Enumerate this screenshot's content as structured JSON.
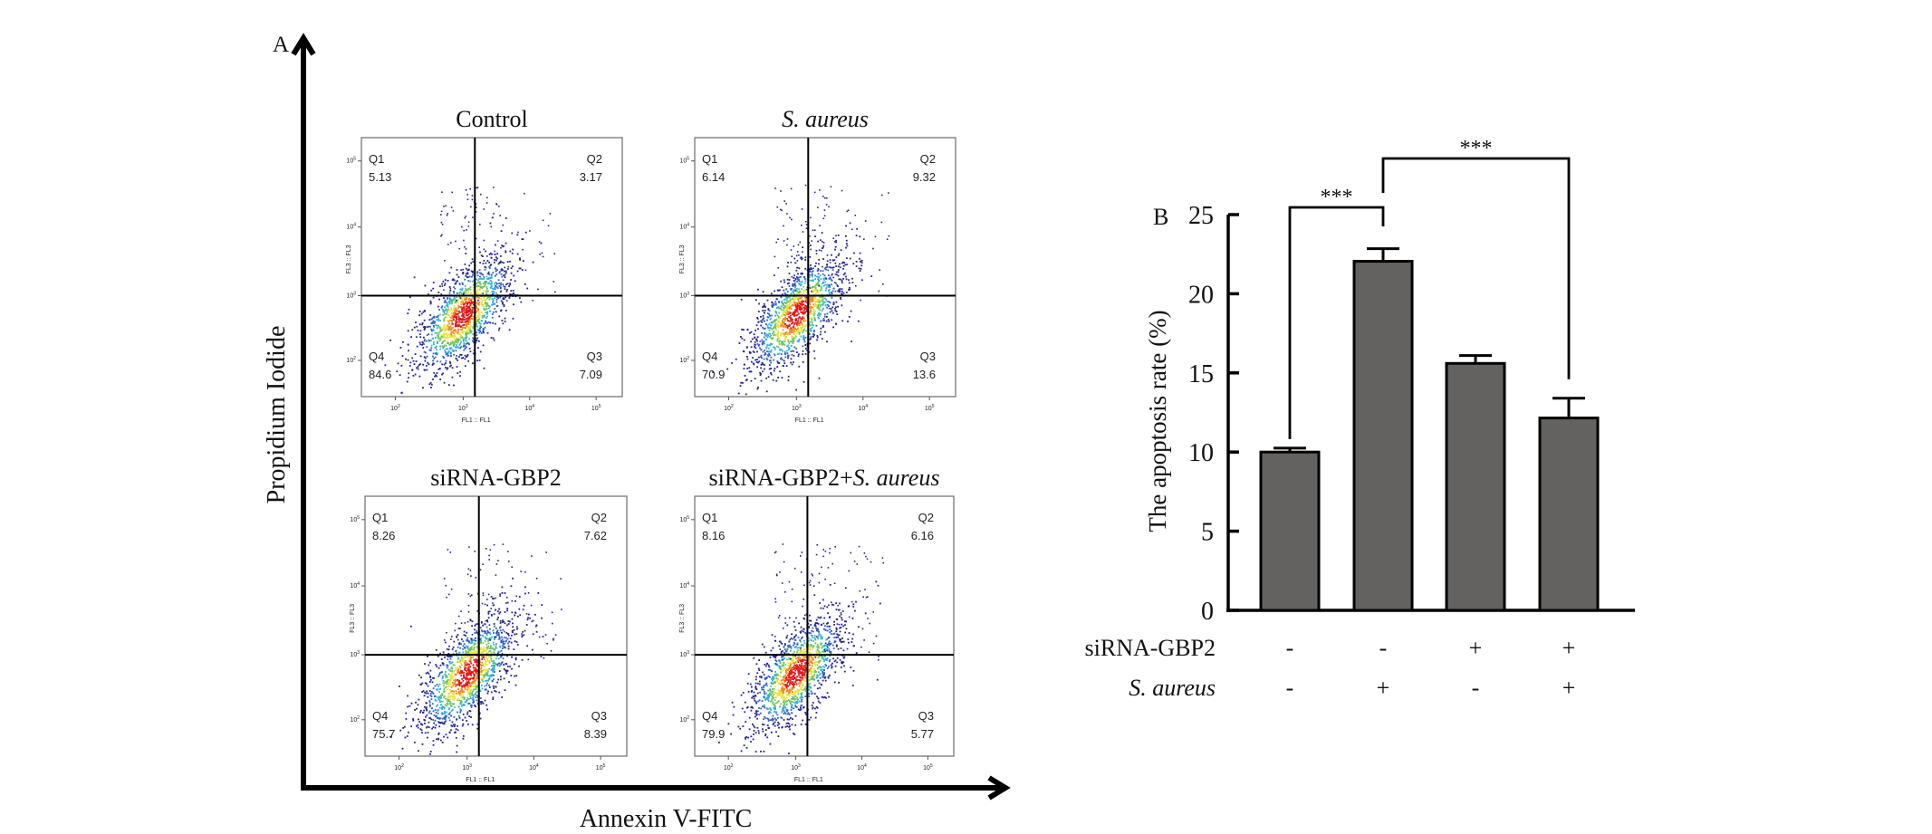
{
  "panel_a": {
    "label": "A",
    "y_axis_title": "Propidium Iodide",
    "x_axis_title": "Annexin V-FITC",
    "flow_x_label": "FL1 :: FL1",
    "flow_y_label": "FL3 :: FL3",
    "log_ticks": [
      "10",
      "10",
      "10",
      "10"
    ],
    "log_exponents": [
      "2",
      "3",
      "4",
      "5"
    ],
    "plots": [
      {
        "title": "Control",
        "title_italic": false,
        "title_prefix": "",
        "Q1": "5.13",
        "Q2": "3.17",
        "Q3": "7.09",
        "Q4": "84.6"
      },
      {
        "title": "S. aureus",
        "title_italic": true,
        "title_prefix": "",
        "Q1": "6.14",
        "Q2": "9.32",
        "Q3": "13.6",
        "Q4": "70.9"
      },
      {
        "title": "siRNA-GBP2",
        "title_italic": false,
        "title_prefix": "",
        "Q1": "8.26",
        "Q2": "7.62",
        "Q3": "8.39",
        "Q4": "75.7"
      },
      {
        "title": "S. aureus",
        "title_italic": true,
        "title_prefix": "siRNA-GBP2+",
        "Q1": "8.16",
        "Q2": "6.16",
        "Q3": "5.77",
        "Q4": "79.9"
      }
    ],
    "quadrant_names": [
      "Q1",
      "Q2",
      "Q3",
      "Q4"
    ],
    "density_colors": [
      "#23238f",
      "#2f5fc0",
      "#33b0d8",
      "#6cc45a",
      "#e8e23a",
      "#f08a20",
      "#e01818"
    ]
  },
  "chart_data": {
    "type": "bar",
    "panel_label": "B",
    "title": "",
    "xlabel": "",
    "ylabel": "The apoptosis rate (%)",
    "ylim": [
      0,
      25
    ],
    "yticks": [
      0,
      5,
      10,
      15,
      20,
      25
    ],
    "categories": [
      "Control",
      "S. aureus",
      "siRNA-GBP2",
      "siRNA-GBP2+S. aureus"
    ],
    "values": [
      10.0,
      22.05,
      15.6,
      12.15
    ],
    "error": [
      0.25,
      0.8,
      0.5,
      1.25
    ],
    "bar_color": "#636260",
    "grid": false,
    "conditions": [
      {
        "name": "siRNA-GBP2",
        "italic": false,
        "signs": [
          "-",
          "-",
          "+",
          "+"
        ]
      },
      {
        "name": "S. aureus",
        "italic": true,
        "signs": [
          "-",
          "+",
          "-",
          "+"
        ]
      }
    ],
    "significance": [
      {
        "from": 0,
        "to": 1,
        "label": "***"
      },
      {
        "from": 1,
        "to": 3,
        "label": "***"
      }
    ]
  }
}
